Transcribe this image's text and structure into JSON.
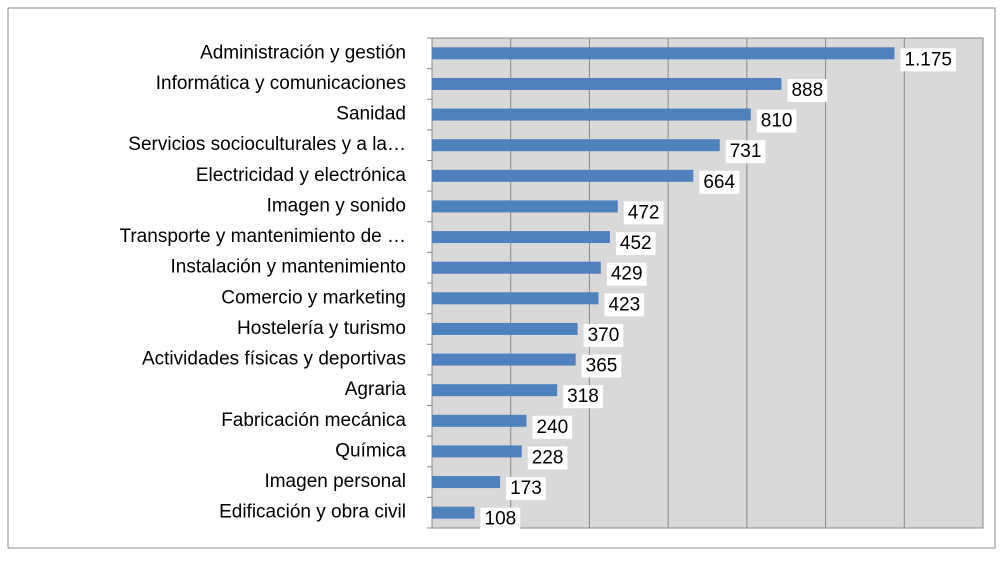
{
  "chart_data": {
    "type": "barh",
    "categories": [
      "Administración y gestión",
      "Informática y comunicaciones",
      "Sanidad",
      "Servicios socioculturales y a la…",
      "Electricidad y electrónica",
      "Imagen y sonido",
      "Transporte y mantenimiento de …",
      "Instalación y mantenimiento",
      "Comercio y marketing",
      "Hostelería y turismo",
      "Actividades físicas y deportivas",
      "Agraria",
      "Fabricación mecánica",
      "Química",
      "Imagen personal",
      "Edificación y obra civil"
    ],
    "values": [
      1175,
      888,
      810,
      731,
      664,
      472,
      452,
      429,
      423,
      370,
      365,
      318,
      240,
      228,
      173,
      108
    ],
    "value_labels": [
      "1.175",
      "888",
      "810",
      "731",
      "664",
      "472",
      "452",
      "429",
      "423",
      "370",
      "365",
      "318",
      "240",
      "228",
      "173",
      "108"
    ],
    "color": "#4f81bd",
    "xlim": [
      0,
      1400
    ],
    "xticks": [
      0,
      200,
      400,
      600,
      800,
      1000,
      1200,
      1400
    ],
    "grid": true
  }
}
